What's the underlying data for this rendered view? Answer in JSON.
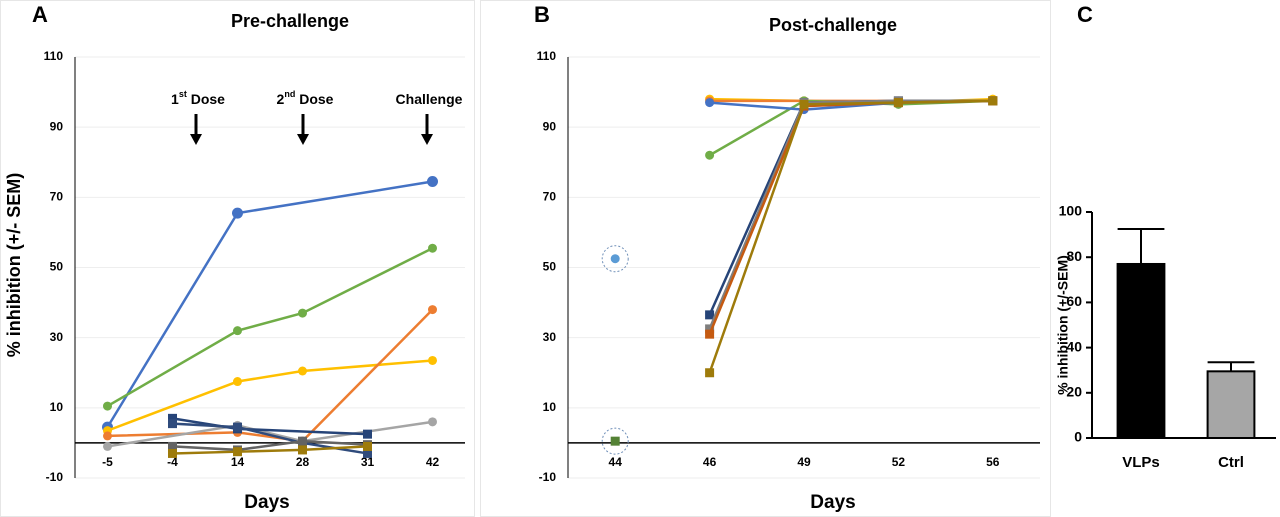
{
  "chart_data": [
    {
      "type": "line",
      "panel": "A",
      "title": "Pre-challenge",
      "x_label": "Days",
      "y_label": "% inhibition (+/- SEM)",
      "categories": [
        "-5",
        "-4",
        "14",
        "28",
        "31",
        "42"
      ],
      "ylim": [
        -10,
        110
      ],
      "yticks": [
        -10,
        10,
        30,
        50,
        70,
        90,
        110
      ],
      "grid": true,
      "annotations": [
        {
          "text": "1",
          "sup": "st",
          "after": " Dose"
        },
        {
          "text": "2",
          "sup": "nd",
          "after": " Dose"
        },
        {
          "text": "Challenge"
        }
      ],
      "series": [
        {
          "color": "#4472c4",
          "marker": "circle",
          "x": [
            "-5",
            "14",
            "42"
          ],
          "values": [
            4.5,
            65.5,
            74.5
          ]
        },
        {
          "color": "#70ad47",
          "marker": "circle",
          "x": [
            "-5",
            "14",
            "28",
            "42"
          ],
          "values": [
            10.5,
            32,
            37,
            55.5
          ]
        },
        {
          "color": "#ffc000",
          "marker": "circle",
          "x": [
            "-5",
            "14",
            "28",
            "42"
          ],
          "values": [
            3.5,
            17.5,
            20.5,
            23.5
          ]
        },
        {
          "color": "#ed7d31",
          "marker": "circle",
          "x": [
            "-5",
            "14",
            "28",
            "42"
          ],
          "values": [
            2,
            3,
            0.5,
            38
          ]
        },
        {
          "color": "#a5a5a5",
          "marker": "circle",
          "x": [
            "-5",
            "14",
            "28",
            "42"
          ],
          "values": [
            -1,
            5,
            0.5,
            6
          ]
        },
        {
          "color": "#264478",
          "marker": "square",
          "x": [
            "-4",
            "14",
            "31"
          ],
          "values": [
            7,
            4,
            2.5
          ]
        },
        {
          "color": "#2f4b7c",
          "marker": "square",
          "x": [
            "-4",
            "14",
            "28",
            "31"
          ],
          "values": [
            5.5,
            4.5,
            0,
            -3
          ]
        },
        {
          "color": "#636363",
          "marker": "square",
          "x": [
            "-4",
            "14",
            "28",
            "31"
          ],
          "values": [
            -1,
            -2,
            0.5,
            -0.5
          ]
        },
        {
          "color": "#9e7b0b",
          "marker": "square",
          "x": [
            "-4",
            "14",
            "28",
            "31"
          ],
          "values": [
            -3,
            -2.5,
            -2,
            -1
          ]
        }
      ]
    },
    {
      "type": "line",
      "panel": "B",
      "title": "Post-challenge",
      "x_label": "Days",
      "categories": [
        "44",
        "46",
        "49",
        "52",
        "56"
      ],
      "ylim": [
        -10,
        110
      ],
      "yticks": [
        -10,
        10,
        30,
        50,
        70,
        90,
        110
      ],
      "grid": true,
      "series": [
        {
          "color": "#5b9bd5",
          "marker": "circle",
          "circled": true,
          "x": [
            "44"
          ],
          "values": [
            52.5
          ]
        },
        {
          "color": "#548235",
          "marker": "square",
          "circled": true,
          "x": [
            "44"
          ],
          "values": [
            0.5
          ]
        },
        {
          "color": "#ffc000",
          "marker": "circle",
          "x": [
            "46",
            "49",
            "52",
            "56"
          ],
          "values": [
            98,
            97.5,
            97,
            98
          ]
        },
        {
          "color": "#ed7d31",
          "marker": "circle",
          "x": [
            "46",
            "49",
            "52",
            "56"
          ],
          "values": [
            97.5,
            97.5,
            97.5,
            97.5
          ]
        },
        {
          "color": "#70ad47",
          "marker": "circle",
          "x": [
            "46",
            "49",
            "52",
            "56"
          ],
          "values": [
            82,
            97.5,
            96.5,
            97.5
          ]
        },
        {
          "color": "#4472c4",
          "marker": "circle",
          "x": [
            "46",
            "49",
            "52",
            "56"
          ],
          "values": [
            97,
            95,
            97,
            97.5
          ]
        },
        {
          "color": "#264478",
          "marker": "square",
          "x": [
            "46",
            "49",
            "52",
            "56"
          ],
          "values": [
            36.5,
            97,
            97.5,
            97.5
          ]
        },
        {
          "color": "#7f7f7f",
          "marker": "square",
          "x": [
            "46",
            "49",
            "52",
            "56"
          ],
          "values": [
            32.5,
            97,
            97.5,
            97.5
          ]
        },
        {
          "color": "#c55a11",
          "marker": "square",
          "x": [
            "46",
            "49",
            "52",
            "56"
          ],
          "values": [
            31,
            96,
            97,
            97.5
          ]
        },
        {
          "color": "#9e7b0b",
          "marker": "square",
          "x": [
            "46",
            "49",
            "52",
            "56"
          ],
          "values": [
            20,
            96.5,
            97,
            97.5
          ]
        }
      ]
    },
    {
      "type": "bar",
      "panel": "C",
      "y_label": "% inhibition (+/-SEM)",
      "categories": [
        "VLPs",
        "Ctrl"
      ],
      "values": [
        77,
        29.5
      ],
      "errors": [
        15.5,
        4
      ],
      "colors": [
        "#000000",
        "#a6a6a6"
      ],
      "ylim": [
        0,
        100
      ],
      "yticks": [
        0,
        20,
        40,
        60,
        80,
        100
      ],
      "grid": false
    }
  ]
}
